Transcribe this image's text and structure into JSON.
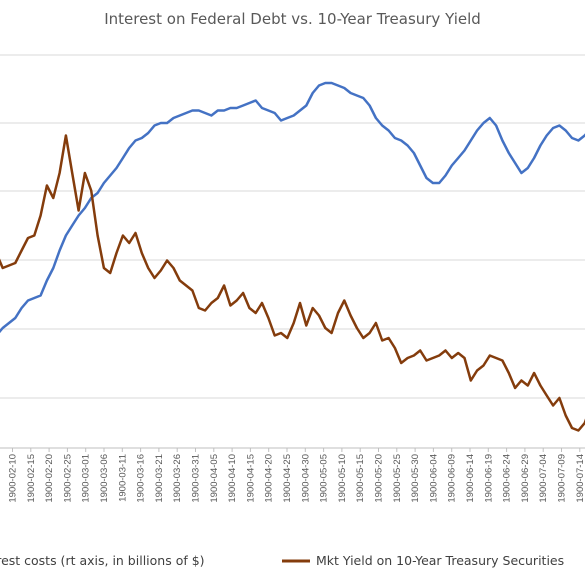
{
  "chart_data": {
    "type": "line",
    "title": "Interest on Federal Debt vs. 10-Year Treasury Yield",
    "xlabel": "",
    "ylabel": "",
    "x_tick_labels": [
      "1900-02-10",
      "1900-02-15",
      "1900-02-20",
      "1900-02-25",
      "1900-03-01",
      "1900-03-06",
      "1900-03-11",
      "1900-03-16",
      "1900-03-21",
      "1900-03-26",
      "1900-03-31",
      "1900-04-05",
      "1900-04-10",
      "1900-04-15",
      "1900-04-20",
      "1900-04-25",
      "1900-04-30",
      "1900-05-05",
      "1900-05-10",
      "1900-05-15",
      "1900-05-20",
      "1900-05-25",
      "1900-05-30",
      "1900-06-04",
      "1900-06-09",
      "1900-06-14",
      "1900-06-19",
      "1900-06-24",
      "1900-06-29",
      "1900-07-04",
      "1900-07-09",
      "1900-07-14"
    ],
    "grid": true,
    "legend_position": "bottom",
    "series": [
      {
        "name": "Interest costs (rt axis, in billions of $)",
        "color": "#4472C4",
        "values": [
          0.4,
          0.5,
          0.8,
          1.0,
          1.2,
          1.6,
          1.9,
          2.0,
          2.1,
          2.7,
          3.2,
          3.9,
          4.5,
          4.9,
          5.3,
          5.6,
          6.0,
          6.2,
          6.6,
          6.9,
          7.2,
          7.6,
          8.0,
          8.3,
          8.4,
          8.6,
          8.9,
          9.0,
          9.0,
          9.2,
          9.3,
          9.4,
          9.5,
          9.5,
          9.4,
          9.3,
          9.5,
          9.5,
          9.6,
          9.6,
          9.7,
          9.8,
          9.9,
          9.6,
          9.5,
          9.4,
          9.1,
          9.2,
          9.3,
          9.5,
          9.7,
          10.2,
          10.5,
          10.6,
          10.6,
          10.5,
          10.4,
          10.2,
          10.1,
          10.0,
          9.7,
          9.2,
          8.9,
          8.7,
          8.4,
          8.3,
          8.1,
          7.8,
          7.3,
          6.8,
          6.6,
          6.6,
          6.9,
          7.3,
          7.6,
          7.9,
          8.3,
          8.7,
          9.0,
          9.2,
          8.9,
          8.3,
          7.8,
          7.4,
          7.0,
          7.2,
          7.6,
          8.1,
          8.5,
          8.8,
          8.9,
          8.7,
          8.4,
          8.3,
          8.5,
          8.8,
          9.0,
          9.1,
          9.1
        ]
      },
      {
        "name": "Mkt Yield on 10-Year Treasury Securities",
        "color": "#843C0C",
        "values": [
          3.5,
          3.8,
          3.2,
          3.3,
          3.4,
          3.9,
          4.4,
          4.5,
          5.3,
          6.5,
          6.0,
          7.0,
          8.5,
          7.0,
          5.5,
          7.0,
          6.3,
          4.5,
          3.2,
          3.0,
          3.8,
          4.5,
          4.2,
          4.6,
          3.8,
          3.2,
          2.8,
          3.1,
          3.5,
          3.2,
          2.7,
          2.5,
          2.3,
          1.6,
          1.5,
          1.8,
          2.0,
          2.5,
          1.7,
          1.9,
          2.2,
          1.6,
          1.4,
          1.8,
          1.2,
          0.5,
          0.6,
          0.4,
          1.0,
          1.8,
          0.9,
          1.6,
          1.3,
          0.8,
          0.6,
          1.4,
          1.9,
          1.3,
          0.8,
          0.4,
          0.6,
          1.0,
          0.3,
          0.4,
          0.0,
          -0.6,
          -0.4,
          -0.3,
          -0.1,
          -0.5,
          -0.4,
          -0.3,
          -0.1,
          -0.4,
          -0.2,
          -0.4,
          -1.3,
          -0.9,
          -0.7,
          -0.3,
          -0.4,
          -0.5,
          -1.0,
          -1.6,
          -1.3,
          -1.5,
          -1.0,
          -1.5,
          -1.9,
          -2.3,
          -2.0,
          -2.7,
          -3.2,
          -3.3,
          -3.0,
          -2.3,
          -2.1,
          -2.4,
          -2.5
        ]
      }
    ]
  }
}
